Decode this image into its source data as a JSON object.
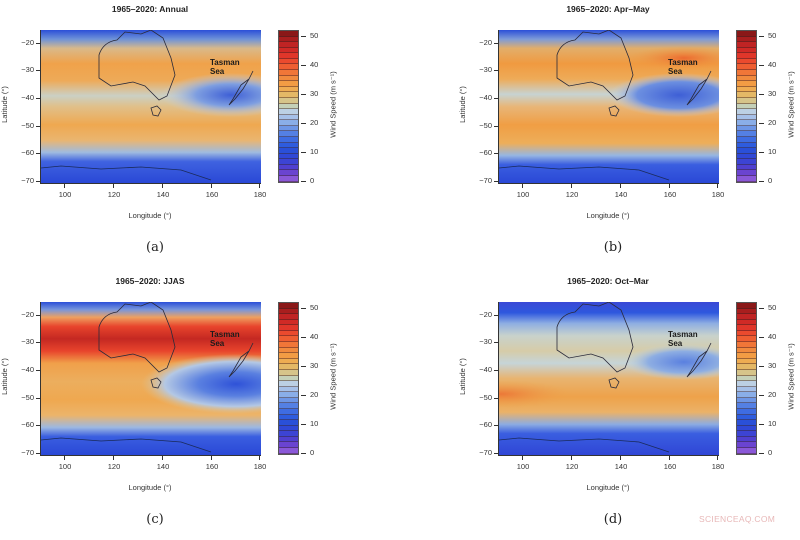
{
  "figure": {
    "watermark": "SCIENCEAQ.COM",
    "panels": [
      {
        "id": "a",
        "title": "1965–2020: Annual",
        "label": "(a)"
      },
      {
        "id": "b",
        "title": "1965–2020: Apr–May",
        "label": "(b)"
      },
      {
        "id": "c",
        "title": "1965–2020: JJAS",
        "label": "(c)"
      },
      {
        "id": "d",
        "title": "1965–2020: Oct–Mar",
        "label": "(d)"
      }
    ],
    "axes": {
      "xlabel": "Longitude (°)",
      "ylabel": "Latitude (°)",
      "xticks": [
        "100",
        "120",
        "140",
        "160",
        "180"
      ],
      "yticks": [
        "−20",
        "−30",
        "−40",
        "−50",
        "−60",
        "−70"
      ]
    },
    "colorbar": {
      "label": "Wind Speed (m s⁻¹)",
      "ticks": [
        "50",
        "40",
        "30",
        "20",
        "10",
        "0"
      ]
    },
    "annotation": {
      "line1": "Tasman",
      "line2": "Sea"
    }
  },
  "chart_data": [
    {
      "type": "heatmap",
      "title": "1965–2020: Annual",
      "xlabel": "Longitude (°)",
      "ylabel": "Latitude (°)",
      "xlim": [
        90,
        180
      ],
      "ylim": [
        -70,
        -15
      ],
      "xticks": [
        100,
        120,
        140,
        160,
        180
      ],
      "yticks": [
        -20,
        -30,
        -40,
        -50,
        -60,
        -70
      ],
      "colorbar": {
        "label": "Wind Speed (m s⁻¹)",
        "range": [
          0,
          52
        ],
        "ticks": [
          0,
          10,
          20,
          30,
          40,
          50
        ]
      },
      "annotations": [
        "Tasman Sea"
      ],
      "description": "Jet maximum ~32–35 m/s near 25–30°S; second band ~30 m/s near 50°S; minimum ~12–15 m/s over Tasman Sea/NZ ~40–45°S; low winds ~5–10 m/s near 15°S and 65–70°S"
    },
    {
      "type": "heatmap",
      "title": "1965–2020: Apr–May",
      "xlabel": "Longitude (°)",
      "ylabel": "Latitude (°)",
      "xlim": [
        90,
        180
      ],
      "ylim": [
        -70,
        -15
      ],
      "colorbar": {
        "label": "Wind Speed (m s⁻¹)",
        "range": [
          0,
          52
        ],
        "ticks": [
          0,
          10,
          20,
          30,
          40,
          50
        ]
      },
      "annotations": [
        "Tasman Sea"
      ],
      "description": "Subtropical jet ~33–37 m/s near 25–30°S strongest east of Australia; polar band ~32 m/s near 48°S; minimum ~13 m/s at 40°S, 145–180°E"
    },
    {
      "type": "heatmap",
      "title": "1965–2020: JJAS",
      "xlabel": "Longitude (°)",
      "ylabel": "Latitude (°)",
      "xlim": [
        90,
        180
      ],
      "ylim": [
        -70,
        -15
      ],
      "colorbar": {
        "label": "Wind Speed (m s⁻¹)",
        "range": [
          0,
          52
        ],
        "ticks": [
          0,
          10,
          20,
          30,
          40,
          50
        ]
      },
      "annotations": [
        "Tasman Sea"
      ],
      "description": "Strong subtropical jet ~45–50 m/s along 28°S across all longitudes; secondary ~30 m/s at 50–60°S; minimum ~10 m/s near 45°S, 165–180°E"
    },
    {
      "type": "heatmap",
      "title": "1965–2020: Oct–Mar",
      "xlabel": "Longitude (°)",
      "ylabel": "Latitude (°)",
      "xlim": [
        90,
        180
      ],
      "ylim": [
        -70,
        -15
      ],
      "colorbar": {
        "label": "Wind Speed (m s⁻¹)",
        "range": [
          0,
          52
        ],
        "ticks": [
          0,
          10,
          20,
          30,
          40,
          50
        ]
      },
      "annotations": [
        "Tasman Sea"
      ],
      "description": "Weaker subtropical band ~22–25 m/s at 28°S; polar jet ~33 m/s near 48°S (strongest at 90–110°E); minimum ~15 m/s near 37°S east of 160°E"
    }
  ]
}
